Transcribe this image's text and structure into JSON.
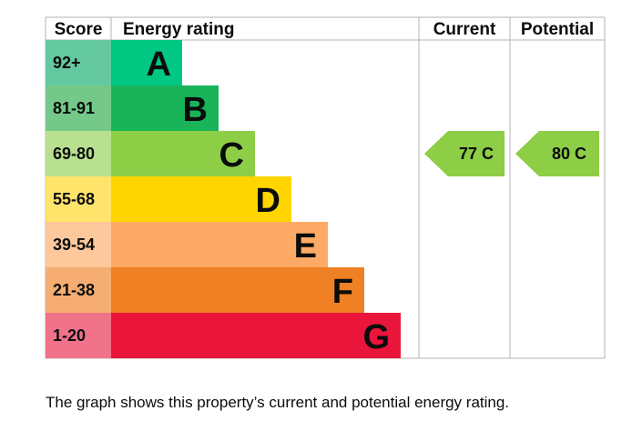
{
  "chart_data": {
    "type": "table",
    "columns": [
      "Score",
      "Energy rating",
      "Current",
      "Potential"
    ],
    "bands": [
      {
        "letter": "A",
        "range": "92+",
        "score_min": 92,
        "score_max": 100,
        "color": "#00c781",
        "score_color": "#64c8a0"
      },
      {
        "letter": "B",
        "range": "81-91",
        "score_min": 81,
        "score_max": 91,
        "color": "#19b459",
        "score_color": "#74c98a"
      },
      {
        "letter": "C",
        "range": "69-80",
        "score_min": 69,
        "score_max": 80,
        "color": "#8dce46",
        "score_color": "#b9e08e"
      },
      {
        "letter": "D",
        "range": "55-68",
        "score_min": 55,
        "score_max": 68,
        "color": "#ffd500",
        "score_color": "#ffe36b"
      },
      {
        "letter": "E",
        "range": "39-54",
        "score_min": 39,
        "score_max": 54,
        "color": "#fcaa65",
        "score_color": "#fdc89c"
      },
      {
        "letter": "F",
        "range": "21-38",
        "score_min": 21,
        "score_max": 38,
        "color": "#ef8023",
        "score_color": "#f5ad72"
      },
      {
        "letter": "G",
        "range": "1-20",
        "score_min": 1,
        "score_max": 20,
        "color": "#e9153b",
        "score_color": "#f0738a"
      }
    ],
    "current": {
      "value": 77,
      "letter": "C",
      "label": "77 C",
      "color": "#8dce46"
    },
    "potential": {
      "value": 80,
      "letter": "C",
      "label": "80 C",
      "color": "#8dce46"
    }
  },
  "caption": "The graph shows this property’s current and potential energy rating."
}
